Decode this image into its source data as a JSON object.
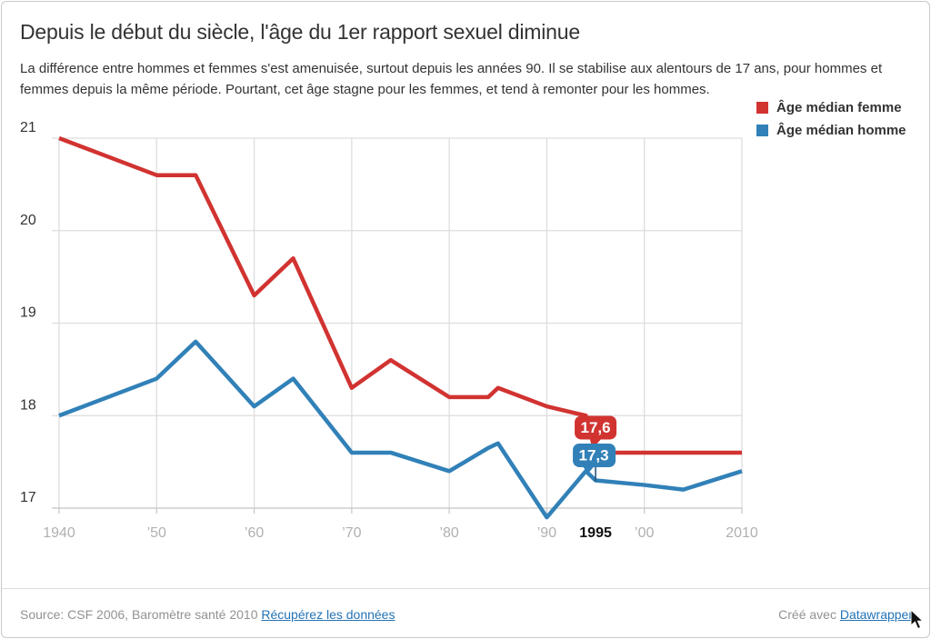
{
  "header": {
    "title": "Depuis le début du siècle, l'âge du 1er rapport sexuel diminue",
    "description": "La différence entre hommes et femmes s'est amenuisée, surtout depuis les années 90. Il se stabilise aux alentours de 17 ans, pour hommes et femmes depuis la même période. Pourtant, cet âge stagne pour les femmes, et tend à remonter pour les hommes."
  },
  "legend": {
    "items": [
      {
        "label": "Âge médian femme",
        "color": "#d13331"
      },
      {
        "label": "Âge médian homme",
        "color": "#3181b8"
      }
    ]
  },
  "chart_data": {
    "type": "line",
    "title": "Depuis le début du siècle, l'âge du 1er rapport sexuel diminue",
    "xlabel": "",
    "ylabel": "",
    "x": [
      1940,
      1950,
      1954,
      1960,
      1964,
      1970,
      1974,
      1980,
      1984,
      1985,
      1990,
      1994,
      1995,
      2000,
      2004,
      2010
    ],
    "series": [
      {
        "name": "Âge médian femme",
        "color": "#d13331",
        "values": [
          21.0,
          20.6,
          20.6,
          19.3,
          19.7,
          18.3,
          18.6,
          18.2,
          18.2,
          18.3,
          18.1,
          18.0,
          17.6,
          17.6,
          17.6,
          17.6
        ]
      },
      {
        "name": "Âge médian homme",
        "color": "#3181b8",
        "values": [
          18.0,
          18.4,
          18.8,
          18.1,
          18.4,
          17.6,
          17.6,
          17.4,
          17.65,
          17.7,
          16.9,
          17.4,
          17.3,
          17.25,
          17.2,
          17.4
        ]
      }
    ],
    "xlim": [
      1940,
      2010
    ],
    "ylim": [
      17,
      21
    ],
    "yticks": [
      21,
      20,
      19,
      18,
      17
    ],
    "x_gridlines": [
      1940,
      1950,
      1960,
      1970,
      1980,
      1990,
      2000,
      2010
    ],
    "xticks": [
      {
        "label": "1940",
        "year": 1940,
        "highlight": false
      },
      {
        "label": "’50",
        "year": 1950,
        "highlight": false
      },
      {
        "label": "’60",
        "year": 1960,
        "highlight": false
      },
      {
        "label": "’70",
        "year": 1970,
        "highlight": false
      },
      {
        "label": "’80",
        "year": 1980,
        "highlight": false
      },
      {
        "label": "’90",
        "year": 1990,
        "highlight": false
      },
      {
        "label": "1995",
        "year": 1995,
        "highlight": true
      },
      {
        "label": "’00",
        "year": 2000,
        "highlight": false
      },
      {
        "label": "2010",
        "year": 2010,
        "highlight": false
      }
    ],
    "annotations": [
      {
        "series": 0,
        "year": 1995,
        "value": 17.6,
        "label": "17,6",
        "connector": "#7d1f1f"
      },
      {
        "series": 1,
        "year": 1995,
        "value": 17.3,
        "label": "17,3",
        "connector": "#1c4e74"
      }
    ],
    "grid": true,
    "legend_position": "top-right",
    "colors": {
      "grid": "#dddddd",
      "axis": "#c8c8c8",
      "ytick_label": "#333333",
      "xtick_label": "#b0b0b0",
      "xtick_highlight": "#111111",
      "value_label_text": "#ffffff"
    }
  },
  "footer": {
    "source_prefix": "Source: CSF 2006, Baromètre santé 2010",
    "source_link": "Récupérez les données",
    "credit_prefix": "Créé avec",
    "credit_link": "Datawrapper"
  }
}
